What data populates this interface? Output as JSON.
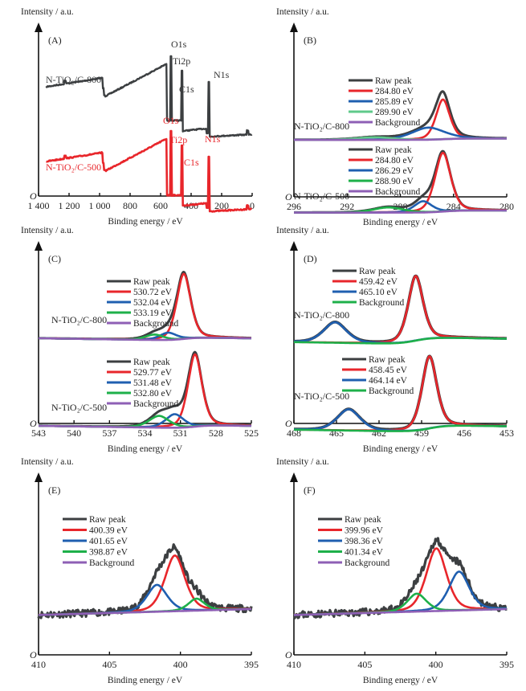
{
  "chart_data": [
    {
      "id": "A",
      "type": "line",
      "panel_label": "(A)",
      "xlabel": "Binding energy / eV",
      "ylabel": "Intensity / a.u.",
      "origin_label": "O",
      "xlim": [
        1400,
        0
      ],
      "x_ticks": [
        1400,
        1200,
        1000,
        800,
        600,
        400,
        200,
        0
      ],
      "x_tick_labels": [
        "1 400",
        "1 200",
        "1 000",
        "800",
        "600",
        "400",
        "200",
        "0"
      ],
      "series": [
        {
          "name": "N-TiO2/C-800",
          "label": "N-TiO₂/C-800",
          "color": "#3c3f41",
          "peaks": [
            {
              "name": "O1s",
              "label": "O1s",
              "x": 531
            },
            {
              "name": "Ti2p",
              "label": "Ti2p",
              "x": 459
            },
            {
              "name": "N1s",
              "label": "N1s",
              "x": 400
            },
            {
              "name": "C1s",
              "label": "C1s",
              "x": 285
            }
          ]
        },
        {
          "name": "N-TiO2/C-500",
          "label": "N-TiO₂/C-500",
          "color": "#e8262b",
          "peaks": [
            {
              "name": "O1s",
              "label": "O1s",
              "x": 531
            },
            {
              "name": "Ti2p",
              "label": "Ti2p",
              "x": 459
            },
            {
              "name": "N1s",
              "label": "N1s",
              "x": 400
            },
            {
              "name": "C1s",
              "label": "C1s",
              "x": 285
            }
          ]
        }
      ]
    },
    {
      "id": "B",
      "type": "line",
      "panel_label": "(B)",
      "xlabel": "Binding energy / eV",
      "ylabel": "Intensity / a.u.",
      "origin_label": "O",
      "xlim": [
        296,
        280
      ],
      "x_ticks": [
        296,
        292,
        288,
        284,
        280
      ],
      "x_tick_labels": [
        "296",
        "292",
        "288",
        "284",
        "280"
      ],
      "samples": [
        {
          "name": "N-TiO2/C-800",
          "label": "N-TiO₂/C-800",
          "legend": [
            {
              "label": "Raw peak",
              "color": "#3c3f41"
            },
            {
              "label": "284.80 eV",
              "color": "#e8262b"
            },
            {
              "label": "285.89 eV",
              "color": "#1f5fb0"
            },
            {
              "label": "289.90 eV",
              "color": "#5fc98a"
            },
            {
              "label": "Background",
              "color": "#8e5fb5"
            }
          ],
          "components": [
            {
              "center": 284.8,
              "height": 0.46,
              "width": 0.55
            },
            {
              "center": 285.89,
              "height": 0.14,
              "width": 1.3
            },
            {
              "center": 289.9,
              "height": 0.03,
              "width": 1.5
            }
          ]
        },
        {
          "name": "N-TiO2/C-500",
          "label": "N-TiO₂/C-500",
          "legend": [
            {
              "label": "Raw peak",
              "color": "#3c3f41"
            },
            {
              "label": "284.80 eV",
              "color": "#e8262b"
            },
            {
              "label": "286.29 eV",
              "color": "#1f5fb0"
            },
            {
              "label": "288.90 eV",
              "color": "#1eb04a"
            },
            {
              "label": "Background",
              "color": "#8e5fb5"
            }
          ],
          "components": [
            {
              "center": 284.8,
              "height": 0.68,
              "width": 0.62
            },
            {
              "center": 286.29,
              "height": 0.13,
              "width": 0.7
            },
            {
              "center": 288.9,
              "height": 0.06,
              "width": 1.2
            }
          ]
        }
      ]
    },
    {
      "id": "C",
      "type": "line",
      "panel_label": "(C)",
      "xlabel": "Binding energy / eV",
      "ylabel": "Intensity / a.u.",
      "origin_label": "O",
      "xlim": [
        543,
        525
      ],
      "x_ticks": [
        543,
        540,
        537,
        534,
        531,
        528,
        525
      ],
      "x_tick_labels": [
        "543",
        "540",
        "537",
        "534",
        "531",
        "528",
        "525"
      ],
      "samples": [
        {
          "name": "N-TiO2/C-800",
          "label": "N-TiO₂/C-800",
          "legend": [
            {
              "label": "Raw peak",
              "color": "#3c3f41"
            },
            {
              "label": "530.72 eV",
              "color": "#e8262b"
            },
            {
              "label": "532.04 eV",
              "color": "#1f5fb0"
            },
            {
              "label": "533.19 eV",
              "color": "#1eb04a"
            },
            {
              "label": "Background",
              "color": "#8e5fb5"
            }
          ],
          "components": [
            {
              "center": 530.72,
              "height": 0.72,
              "width": 0.62
            },
            {
              "center": 532.04,
              "height": 0.08,
              "width": 0.75
            },
            {
              "center": 533.19,
              "height": 0.06,
              "width": 0.8
            }
          ]
        },
        {
          "name": "N-TiO2/C-500",
          "label": "N-TiO₂/C-500",
          "legend": [
            {
              "label": "Raw peak",
              "color": "#3c3f41"
            },
            {
              "label": "529.77 eV",
              "color": "#e8262b"
            },
            {
              "label": "531.48 eV",
              "color": "#1f5fb0"
            },
            {
              "label": "532.80 eV",
              "color": "#1eb04a"
            },
            {
              "label": "Background",
              "color": "#8e5fb5"
            }
          ],
          "components": [
            {
              "center": 529.77,
              "height": 0.8,
              "width": 0.62
            },
            {
              "center": 531.48,
              "height": 0.15,
              "width": 0.8
            },
            {
              "center": 532.8,
              "height": 0.13,
              "width": 0.9
            }
          ]
        }
      ]
    },
    {
      "id": "D",
      "type": "line",
      "panel_label": "(D)",
      "xlabel": "Binding energy / eV",
      "ylabel": "Intensity / a.u.",
      "origin_label": "O",
      "xlim": [
        468,
        453
      ],
      "x_ticks": [
        468,
        465,
        462,
        459,
        456,
        453
      ],
      "x_tick_labels": [
        "468",
        "465",
        "462",
        "459",
        "456",
        "453"
      ],
      "samples": [
        {
          "name": "N-TiO2/C-800",
          "label": "N-TiO₂/C-800",
          "legend": [
            {
              "label": "Raw peak",
              "color": "#3c3f41"
            },
            {
              "label": "459.42 eV",
              "color": "#e8262b"
            },
            {
              "label": "465.10 eV",
              "color": "#1f5fb0"
            },
            {
              "label": "Background",
              "color": "#1eb04a"
            }
          ],
          "components": [
            {
              "center": 459.42,
              "height": 0.85,
              "width": 0.55
            },
            {
              "center": 465.1,
              "height": 0.27,
              "width": 0.85
            }
          ]
        },
        {
          "name": "N-TiO2/C-500",
          "label": "N-TiO₂/C-500",
          "legend": [
            {
              "label": "Raw peak",
              "color": "#3c3f41"
            },
            {
              "label": "458.45 eV",
              "color": "#e8262b"
            },
            {
              "label": "464.14 eV",
              "color": "#1f5fb0"
            },
            {
              "label": "Background",
              "color": "#1eb04a"
            }
          ],
          "components": [
            {
              "center": 458.45,
              "height": 0.95,
              "width": 0.55
            },
            {
              "center": 464.14,
              "height": 0.28,
              "width": 0.85
            }
          ]
        }
      ]
    },
    {
      "id": "E",
      "type": "line",
      "panel_label": "(E)",
      "xlabel": "Binding energy / eV",
      "ylabel": "Intensity / a.u.",
      "origin_label": "O",
      "xlim": [
        410,
        395
      ],
      "x_ticks": [
        410,
        405,
        400,
        395
      ],
      "x_tick_labels": [
        "410",
        "405",
        "400",
        "395"
      ],
      "legend": [
        {
          "label": "Raw peak",
          "color": "#3c3f41"
        },
        {
          "label": "400.39 eV",
          "color": "#e8262b"
        },
        {
          "label": "401.65 eV",
          "color": "#1f5fb0"
        },
        {
          "label": "398.87 eV",
          "color": "#1eb04a"
        },
        {
          "label": "Background",
          "color": "#8e5fb5"
        }
      ],
      "components": [
        {
          "center": 400.39,
          "height": 0.56,
          "width": 0.75
        },
        {
          "center": 401.65,
          "height": 0.27,
          "width": 0.75
        },
        {
          "center": 398.87,
          "height": 0.12,
          "width": 0.6
        }
      ]
    },
    {
      "id": "F",
      "type": "line",
      "panel_label": "(F)",
      "xlabel": "Binding energy / eV",
      "ylabel": "Intensity / a.u.",
      "origin_label": "O",
      "xlim": [
        410,
        395
      ],
      "x_ticks": [
        410,
        405,
        400,
        395
      ],
      "x_tick_labels": [
        "410",
        "405",
        "400",
        "395"
      ],
      "legend": [
        {
          "label": "Raw peak",
          "color": "#3c3f41"
        },
        {
          "label": "399.96 eV",
          "color": "#e8262b"
        },
        {
          "label": "398.36 eV",
          "color": "#1f5fb0"
        },
        {
          "label": "401.34 eV",
          "color": "#1eb04a"
        },
        {
          "label": "Background",
          "color": "#8e5fb5"
        }
      ],
      "components": [
        {
          "center": 399.96,
          "height": 0.63,
          "width": 0.75
        },
        {
          "center": 398.36,
          "height": 0.39,
          "width": 0.75
        },
        {
          "center": 401.34,
          "height": 0.18,
          "width": 0.7
        }
      ]
    }
  ]
}
